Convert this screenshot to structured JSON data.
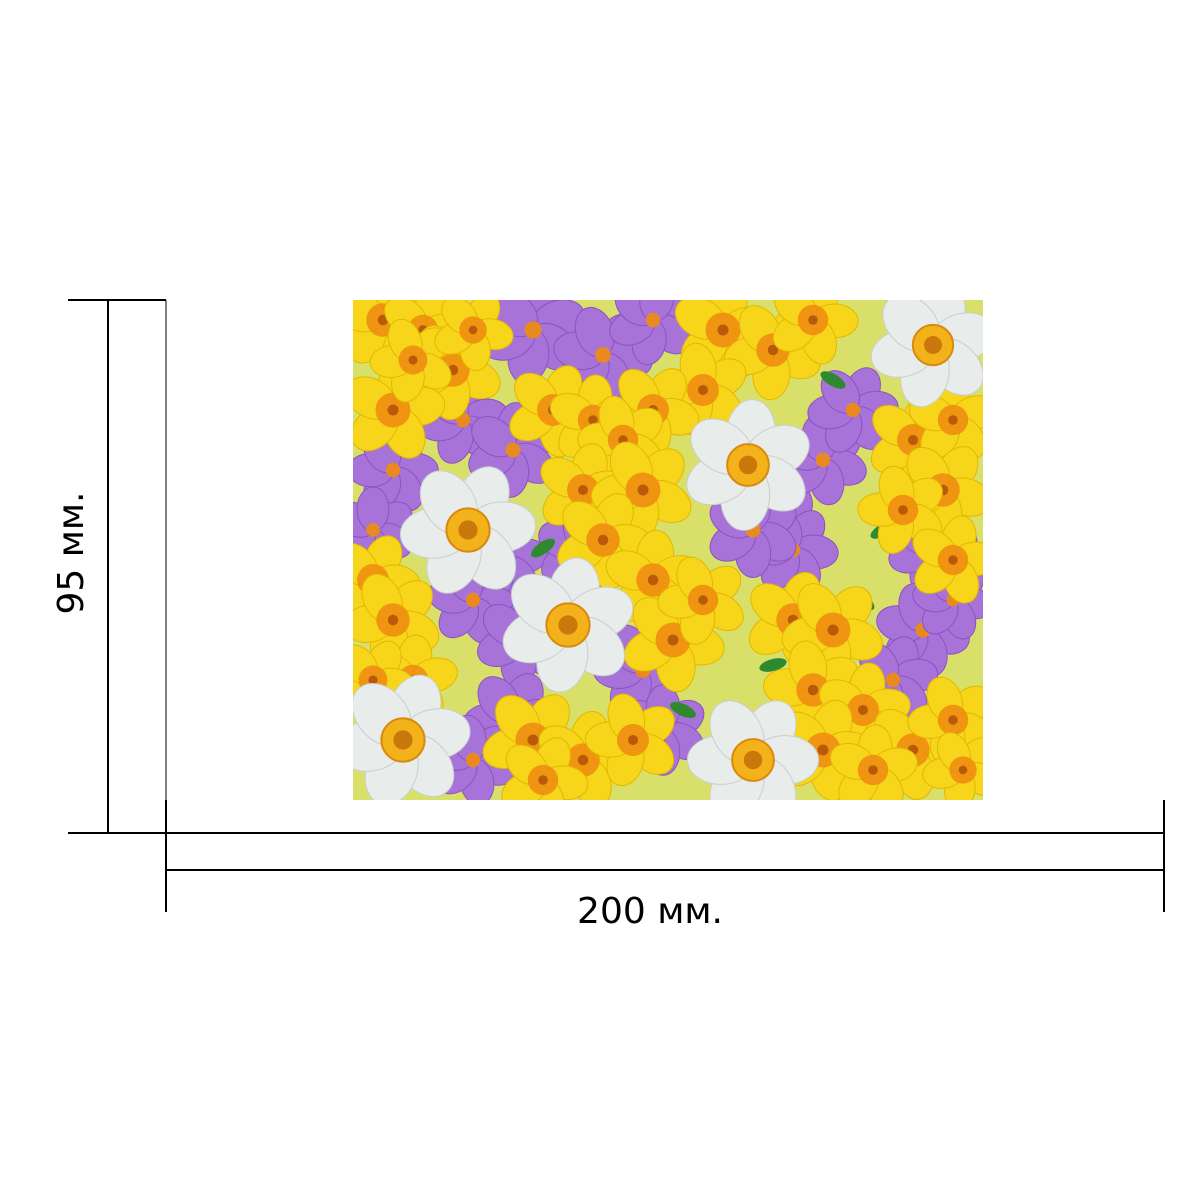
{
  "dimensions": {
    "width_label": "200 мм.",
    "height_label": "95 мм."
  },
  "photo": {
    "subject-icon": "flower-collage-icon",
    "colors": {
      "background": "#d8e06a",
      "primrose": "#f7d51a",
      "primrose_center": "#ef8a12",
      "crocus": "#a873d8",
      "crocus_dark": "#8a52c4",
      "daffodil": "#e8ecea",
      "daffodil_center": "#f3b21a",
      "leaf": "#2f8a2f"
    }
  }
}
